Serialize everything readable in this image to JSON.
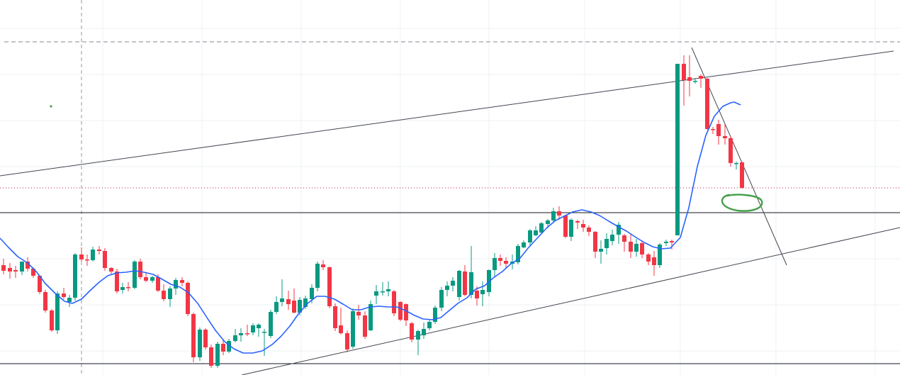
{
  "chart_data": {
    "type": "candlestick",
    "title": "",
    "xlabel": "",
    "ylabel": "",
    "ylim": [
      0,
      529
    ],
    "grid": true,
    "legend": "none",
    "colors": {
      "up": "#089981",
      "down": "#f23645",
      "moving_average": "#2962ff",
      "trendline": "#434651",
      "horizontal_level": "#131722",
      "price_line": "#c2185b",
      "marker": "#43a047",
      "grid": "#eef0f3",
      "crosshair": "#9598a1"
    },
    "candles": [
      {
        "x": 5,
        "o": 155,
        "h": 164,
        "l": 142,
        "c": 147
      },
      {
        "x": 14,
        "o": 151,
        "h": 158,
        "l": 136,
        "c": 146
      },
      {
        "x": 22,
        "o": 148,
        "h": 154,
        "l": 137,
        "c": 146
      },
      {
        "x": 31,
        "o": 146,
        "h": 155,
        "l": 141,
        "c": 160
      },
      {
        "x": 39,
        "o": 160,
        "h": 166,
        "l": 146,
        "c": 150
      },
      {
        "x": 47,
        "o": 150,
        "h": 152,
        "l": 137,
        "c": 140
      },
      {
        "x": 56,
        "o": 140,
        "h": 141,
        "l": 114,
        "c": 117
      },
      {
        "x": 64,
        "o": 117,
        "h": 120,
        "l": 88,
        "c": 91
      },
      {
        "x": 73,
        "o": 91,
        "h": 93,
        "l": 61,
        "c": 63
      },
      {
        "x": 81,
        "o": 63,
        "h": 118,
        "l": 58,
        "c": 115
      },
      {
        "x": 90,
        "o": 115,
        "h": 123,
        "l": 107,
        "c": 110
      },
      {
        "x": 98,
        "o": 103,
        "h": 113,
        "l": 96,
        "c": 109
      },
      {
        "x": 106,
        "o": 109,
        "h": 172,
        "l": 105,
        "c": 170
      },
      {
        "x": 115,
        "o": 170,
        "h": 180,
        "l": 160,
        "c": 163
      },
      {
        "x": 123,
        "o": 163,
        "h": 170,
        "l": 154,
        "c": 162
      },
      {
        "x": 131,
        "o": 162,
        "h": 181,
        "l": 160,
        "c": 177
      },
      {
        "x": 140,
        "o": 177,
        "h": 182,
        "l": 170,
        "c": 175
      },
      {
        "x": 148,
        "o": 175,
        "h": 179,
        "l": 147,
        "c": 151
      },
      {
        "x": 157,
        "o": 151,
        "h": 152,
        "l": 141,
        "c": 146
      },
      {
        "x": 165,
        "o": 146,
        "h": 150,
        "l": 115,
        "c": 118
      },
      {
        "x": 173,
        "o": 120,
        "h": 130,
        "l": 115,
        "c": 124
      },
      {
        "x": 181,
        "o": 124,
        "h": 131,
        "l": 118,
        "c": 123
      },
      {
        "x": 190,
        "o": 123,
        "h": 162,
        "l": 121,
        "c": 160
      },
      {
        "x": 198,
        "o": 160,
        "h": 164,
        "l": 135,
        "c": 138
      },
      {
        "x": 206,
        "o": 138,
        "h": 145,
        "l": 131,
        "c": 133
      },
      {
        "x": 215,
        "o": 133,
        "h": 140,
        "l": 130,
        "c": 138
      },
      {
        "x": 223,
        "o": 138,
        "h": 142,
        "l": 117,
        "c": 119
      },
      {
        "x": 231,
        "o": 119,
        "h": 128,
        "l": 104,
        "c": 107
      },
      {
        "x": 240,
        "o": 107,
        "h": 125,
        "l": 96,
        "c": 122
      },
      {
        "x": 248,
        "o": 122,
        "h": 137,
        "l": 113,
        "c": 134
      },
      {
        "x": 257,
        "o": 134,
        "h": 138,
        "l": 125,
        "c": 130
      },
      {
        "x": 265,
        "o": 130,
        "h": 132,
        "l": 83,
        "c": 86
      },
      {
        "x": 273,
        "o": 86,
        "h": 88,
        "l": 18,
        "c": 25
      },
      {
        "x": 282,
        "o": 25,
        "h": 67,
        "l": 20,
        "c": 64
      },
      {
        "x": 290,
        "o": 64,
        "h": 66,
        "l": 36,
        "c": 39
      },
      {
        "x": 298,
        "o": 39,
        "h": 43,
        "l": 10,
        "c": 13
      },
      {
        "x": 307,
        "o": 13,
        "h": 47,
        "l": 10,
        "c": 44
      },
      {
        "x": 315,
        "o": 44,
        "h": 51,
        "l": 28,
        "c": 33
      },
      {
        "x": 323,
        "o": 33,
        "h": 51,
        "l": 31,
        "c": 48
      },
      {
        "x": 332,
        "o": 48,
        "h": 65,
        "l": 46,
        "c": 56
      },
      {
        "x": 340,
        "o": 56,
        "h": 66,
        "l": 47,
        "c": 59
      },
      {
        "x": 349,
        "o": 59,
        "h": 71,
        "l": 55,
        "c": 58
      },
      {
        "x": 357,
        "o": 60,
        "h": 73,
        "l": 56,
        "c": 70
      },
      {
        "x": 365,
        "o": 66,
        "h": 73,
        "l": 54,
        "c": 71
      },
      {
        "x": 373,
        "o": 60,
        "h": 65,
        "l": 27,
        "c": 61
      },
      {
        "x": 382,
        "o": 55,
        "h": 92,
        "l": 52,
        "c": 89
      },
      {
        "x": 390,
        "o": 89,
        "h": 111,
        "l": 86,
        "c": 103
      },
      {
        "x": 398,
        "o": 103,
        "h": 135,
        "l": 97,
        "c": 108
      },
      {
        "x": 407,
        "o": 107,
        "h": 119,
        "l": 92,
        "c": 100
      },
      {
        "x": 415,
        "o": 105,
        "h": 122,
        "l": 87,
        "c": 88
      },
      {
        "x": 423,
        "o": 88,
        "h": 110,
        "l": 84,
        "c": 106
      },
      {
        "x": 431,
        "o": 96,
        "h": 112,
        "l": 93,
        "c": 108
      },
      {
        "x": 440,
        "o": 107,
        "h": 128,
        "l": 101,
        "c": 123
      },
      {
        "x": 448,
        "o": 123,
        "h": 160,
        "l": 118,
        "c": 157
      },
      {
        "x": 456,
        "o": 156,
        "h": 162,
        "l": 148,
        "c": 152
      },
      {
        "x": 465,
        "o": 152,
        "h": 153,
        "l": 94,
        "c": 97
      },
      {
        "x": 473,
        "o": 97,
        "h": 101,
        "l": 62,
        "c": 66
      },
      {
        "x": 481,
        "o": 70,
        "h": 95,
        "l": 57,
        "c": 59
      },
      {
        "x": 490,
        "o": 59,
        "h": 63,
        "l": 32,
        "c": 36
      },
      {
        "x": 498,
        "o": 40,
        "h": 94,
        "l": 37,
        "c": 90
      },
      {
        "x": 506,
        "o": 89,
        "h": 99,
        "l": 78,
        "c": 84
      },
      {
        "x": 515,
        "o": 84,
        "h": 90,
        "l": 51,
        "c": 54
      },
      {
        "x": 523,
        "o": 63,
        "h": 105,
        "l": 62,
        "c": 100
      },
      {
        "x": 531,
        "o": 112,
        "h": 127,
        "l": 100,
        "c": 118
      },
      {
        "x": 540,
        "o": 117,
        "h": 131,
        "l": 112,
        "c": 118
      },
      {
        "x": 548,
        "o": 118,
        "h": 132,
        "l": 111,
        "c": 121
      },
      {
        "x": 556,
        "o": 118,
        "h": 120,
        "l": 83,
        "c": 87
      },
      {
        "x": 565,
        "o": 103,
        "h": 104,
        "l": 76,
        "c": 78
      },
      {
        "x": 573,
        "o": 100,
        "h": 101,
        "l": 69,
        "c": 77
      },
      {
        "x": 581,
        "o": 73,
        "h": 75,
        "l": 46,
        "c": 50
      },
      {
        "x": 590,
        "o": 50,
        "h": 64,
        "l": 28,
        "c": 62
      },
      {
        "x": 598,
        "o": 56,
        "h": 74,
        "l": 51,
        "c": 65
      },
      {
        "x": 606,
        "o": 66,
        "h": 79,
        "l": 63,
        "c": 75
      },
      {
        "x": 614,
        "o": 75,
        "h": 98,
        "l": 72,
        "c": 95
      },
      {
        "x": 623,
        "o": 95,
        "h": 124,
        "l": 90,
        "c": 120
      },
      {
        "x": 631,
        "o": 120,
        "h": 132,
        "l": 111,
        "c": 126
      },
      {
        "x": 639,
        "o": 126,
        "h": 138,
        "l": 118,
        "c": 133
      },
      {
        "x": 648,
        "o": 110,
        "h": 148,
        "l": 105,
        "c": 147
      },
      {
        "x": 656,
        "o": 146,
        "h": 155,
        "l": 111,
        "c": 113
      },
      {
        "x": 665,
        "o": 113,
        "h": 182,
        "l": 108,
        "c": 145
      },
      {
        "x": 673,
        "o": 119,
        "h": 125,
        "l": 98,
        "c": 108
      },
      {
        "x": 681,
        "o": 114,
        "h": 132,
        "l": 97,
        "c": 120
      },
      {
        "x": 690,
        "o": 117,
        "h": 149,
        "l": 111,
        "c": 148
      },
      {
        "x": 698,
        "o": 148,
        "h": 172,
        "l": 139,
        "c": 165
      },
      {
        "x": 706,
        "o": 165,
        "h": 170,
        "l": 154,
        "c": 161
      },
      {
        "x": 714,
        "o": 161,
        "h": 166,
        "l": 150,
        "c": 157
      },
      {
        "x": 723,
        "o": 157,
        "h": 170,
        "l": 149,
        "c": 160
      },
      {
        "x": 731,
        "o": 159,
        "h": 185,
        "l": 156,
        "c": 182
      },
      {
        "x": 739,
        "o": 180,
        "h": 190,
        "l": 179,
        "c": 187
      },
      {
        "x": 748,
        "o": 187,
        "h": 206,
        "l": 181,
        "c": 204
      },
      {
        "x": 756,
        "o": 197,
        "h": 210,
        "l": 196,
        "c": 204
      },
      {
        "x": 764,
        "o": 201,
        "h": 216,
        "l": 200,
        "c": 214
      },
      {
        "x": 773,
        "o": 213,
        "h": 220,
        "l": 207,
        "c": 218
      },
      {
        "x": 781,
        "o": 218,
        "h": 236,
        "l": 215,
        "c": 231
      },
      {
        "x": 789,
        "o": 231,
        "h": 238,
        "l": 219,
        "c": 225
      },
      {
        "x": 798,
        "o": 225,
        "h": 226,
        "l": 193,
        "c": 195
      },
      {
        "x": 806,
        "o": 195,
        "h": 221,
        "l": 189,
        "c": 219
      },
      {
        "x": 815,
        "o": 217,
        "h": 219,
        "l": 206,
        "c": 215
      },
      {
        "x": 823,
        "o": 213,
        "h": 219,
        "l": 202,
        "c": 208
      },
      {
        "x": 831,
        "o": 208,
        "h": 211,
        "l": 196,
        "c": 202
      },
      {
        "x": 840,
        "o": 202,
        "h": 203,
        "l": 165,
        "c": 174
      },
      {
        "x": 848,
        "o": 174,
        "h": 190,
        "l": 157,
        "c": 178
      },
      {
        "x": 856,
        "o": 179,
        "h": 200,
        "l": 170,
        "c": 192
      },
      {
        "x": 864,
        "o": 189,
        "h": 205,
        "l": 183,
        "c": 198
      },
      {
        "x": 873,
        "o": 198,
        "h": 216,
        "l": 185,
        "c": 212
      },
      {
        "x": 881,
        "o": 197,
        "h": 199,
        "l": 174,
        "c": 188
      },
      {
        "x": 890,
        "o": 188,
        "h": 198,
        "l": 165,
        "c": 174
      },
      {
        "x": 898,
        "o": 174,
        "h": 192,
        "l": 167,
        "c": 185
      },
      {
        "x": 906,
        "o": 186,
        "h": 190,
        "l": 165,
        "c": 170
      },
      {
        "x": 915,
        "o": 170,
        "h": 172,
        "l": 155,
        "c": 160
      },
      {
        "x": 923,
        "o": 166,
        "h": 175,
        "l": 140,
        "c": 155
      },
      {
        "x": 931,
        "o": 155,
        "h": 186,
        "l": 151,
        "c": 184
      },
      {
        "x": 940,
        "o": 186,
        "h": 191,
        "l": 182,
        "c": 188
      },
      {
        "x": 948,
        "o": 189,
        "h": 191,
        "l": 177,
        "c": 187
      },
      {
        "x": 956,
        "o": 197,
        "h": 439,
        "l": 197,
        "c": 439
      },
      {
        "x": 965,
        "o": 439,
        "h": 451,
        "l": 380,
        "c": 416
      },
      {
        "x": 973,
        "o": 420,
        "h": 451,
        "l": 393,
        "c": 415
      },
      {
        "x": 981,
        "o": 415,
        "h": 419,
        "l": 411,
        "c": 415
      },
      {
        "x": 989,
        "o": 422,
        "h": 424,
        "l": 405,
        "c": 418
      },
      {
        "x": 998,
        "o": 418,
        "h": 419,
        "l": 346,
        "c": 347
      },
      {
        "x": 1006,
        "o": 347,
        "h": 350,
        "l": 340,
        "c": 346
      },
      {
        "x": 1014,
        "o": 354,
        "h": 360,
        "l": 325,
        "c": 337
      },
      {
        "x": 1023,
        "o": 337,
        "h": 354,
        "l": 325,
        "c": 334
      },
      {
        "x": 1031,
        "o": 334,
        "h": 337,
        "l": 294,
        "c": 299
      },
      {
        "x": 1039,
        "o": 298,
        "h": 301,
        "l": 290,
        "c": 299
      },
      {
        "x": 1047,
        "o": 300,
        "h": 301,
        "l": 263,
        "c": 264
      }
    ],
    "moving_average": [
      [
        0,
        193
      ],
      [
        12,
        180
      ],
      [
        25,
        167
      ],
      [
        39,
        158
      ],
      [
        51,
        146
      ],
      [
        64,
        129
      ],
      [
        77,
        116
      ],
      [
        91,
        104
      ],
      [
        102,
        101
      ],
      [
        115,
        107
      ],
      [
        127,
        119
      ],
      [
        140,
        131
      ],
      [
        152,
        140
      ],
      [
        165,
        144
      ],
      [
        178,
        145
      ],
      [
        191,
        147
      ],
      [
        203,
        145
      ],
      [
        216,
        142
      ],
      [
        229,
        135
      ],
      [
        241,
        128
      ],
      [
        254,
        124
      ],
      [
        266,
        116
      ],
      [
        279,
        101
      ],
      [
        292,
        81
      ],
      [
        304,
        63
      ],
      [
        317,
        47
      ],
      [
        330,
        37
      ],
      [
        343,
        31
      ],
      [
        357,
        31
      ],
      [
        370,
        34
      ],
      [
        384,
        43
      ],
      [
        396,
        54
      ],
      [
        409,
        69
      ],
      [
        421,
        86
      ],
      [
        434,
        101
      ],
      [
        447,
        111
      ],
      [
        459,
        111
      ],
      [
        472,
        107
      ],
      [
        484,
        100
      ],
      [
        497,
        92
      ],
      [
        509,
        92
      ],
      [
        522,
        96
      ],
      [
        535,
        97
      ],
      [
        547,
        96
      ],
      [
        560,
        96
      ],
      [
        572,
        91
      ],
      [
        585,
        84
      ],
      [
        597,
        79
      ],
      [
        610,
        78
      ],
      [
        622,
        81
      ],
      [
        634,
        91
      ],
      [
        646,
        101
      ],
      [
        659,
        109
      ],
      [
        671,
        121
      ],
      [
        684,
        126
      ],
      [
        696,
        137
      ],
      [
        709,
        146
      ],
      [
        721,
        157
      ],
      [
        734,
        165
      ],
      [
        746,
        180
      ],
      [
        759,
        194
      ],
      [
        772,
        208
      ],
      [
        784,
        218
      ],
      [
        796,
        224
      ],
      [
        808,
        230
      ],
      [
        821,
        233
      ],
      [
        834,
        230
      ],
      [
        846,
        225
      ],
      [
        859,
        217
      ],
      [
        871,
        210
      ],
      [
        884,
        203
      ],
      [
        896,
        195
      ],
      [
        909,
        187
      ],
      [
        921,
        181
      ],
      [
        933,
        178
      ],
      [
        946,
        179
      ],
      [
        960,
        194
      ],
      [
        972,
        236
      ],
      [
        984,
        294
      ],
      [
        996,
        338
      ],
      [
        1008,
        365
      ],
      [
        1020,
        379
      ],
      [
        1031,
        384
      ],
      [
        1036,
        385
      ],
      [
        1045,
        381
      ]
    ],
    "trendlines": [
      [
        0,
        281,
        1261,
        457
      ],
      [
        341,
        0,
        1270,
        208
      ],
      [
        976,
        462,
        1110,
        155
      ]
    ],
    "horizontal_lines": [
      229,
      16
    ],
    "price_line": 264,
    "top_dashed_level": 470,
    "crosshair_x": 115
  }
}
